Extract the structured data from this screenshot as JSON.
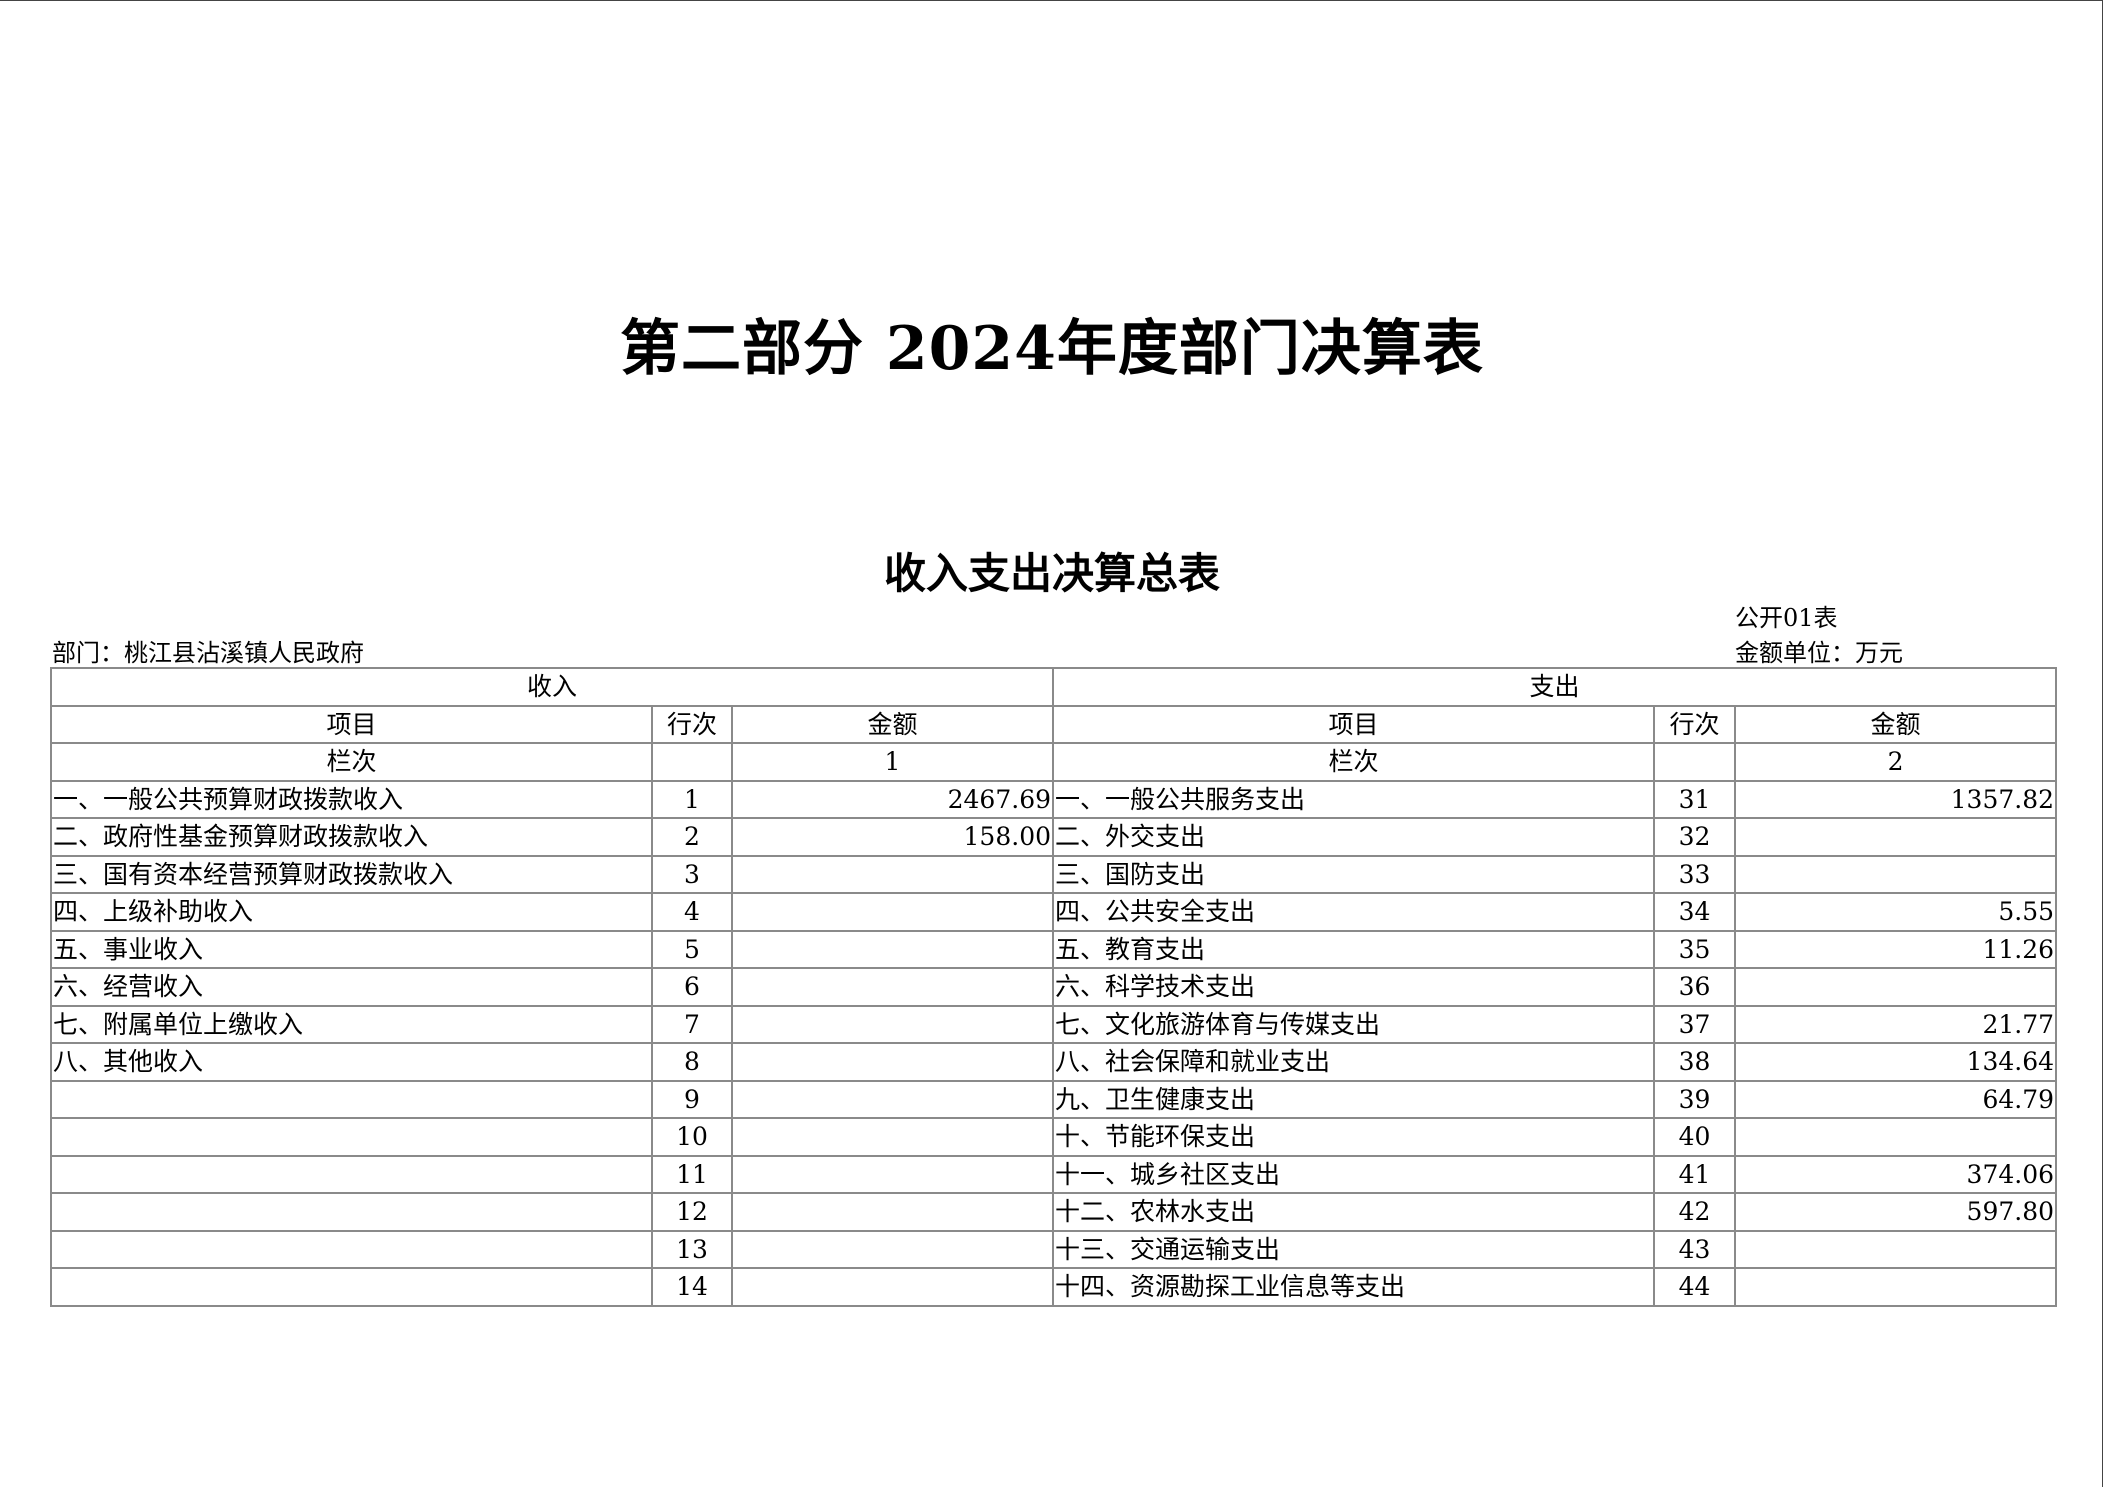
{
  "title": "第二部分 2024年度部门决算表",
  "subtitle": "收入支出决算总表",
  "form_no": "公开01表",
  "department": "部门：桃江县沾溪镇人民政府",
  "unit": "金额单位：万元",
  "table": {
    "income_header": "收入",
    "expense_header": "支出",
    "col_item": "项目",
    "col_line": "行次",
    "col_amount": "金额",
    "col_index_label": "栏次",
    "income_col_index": "1",
    "expense_col_index": "2",
    "rows": [
      {
        "in_item": "一、一般公共预算财政拨款收入",
        "in_line": "1",
        "in_amount": "2467.69",
        "ex_item": "一、一般公共服务支出",
        "ex_line": "31",
        "ex_amount": "1357.82"
      },
      {
        "in_item": "二、政府性基金预算财政拨款收入",
        "in_line": "2",
        "in_amount": "158.00",
        "ex_item": "二、外交支出",
        "ex_line": "32",
        "ex_amount": ""
      },
      {
        "in_item": "三、国有资本经营预算财政拨款收入",
        "in_line": "3",
        "in_amount": "",
        "ex_item": "三、国防支出",
        "ex_line": "33",
        "ex_amount": ""
      },
      {
        "in_item": "四、上级补助收入",
        "in_line": "4",
        "in_amount": "",
        "ex_item": "四、公共安全支出",
        "ex_line": "34",
        "ex_amount": "5.55"
      },
      {
        "in_item": "五、事业收入",
        "in_line": "5",
        "in_amount": "",
        "ex_item": "五、教育支出",
        "ex_line": "35",
        "ex_amount": "11.26"
      },
      {
        "in_item": "六、经营收入",
        "in_line": "6",
        "in_amount": "",
        "ex_item": "六、科学技术支出",
        "ex_line": "36",
        "ex_amount": ""
      },
      {
        "in_item": "七、附属单位上缴收入",
        "in_line": "7",
        "in_amount": "",
        "ex_item": "七、文化旅游体育与传媒支出",
        "ex_line": "37",
        "ex_amount": "21.77"
      },
      {
        "in_item": "八、其他收入",
        "in_line": "8",
        "in_amount": "",
        "ex_item": "八、社会保障和就业支出",
        "ex_line": "38",
        "ex_amount": "134.64"
      },
      {
        "in_item": "",
        "in_line": "9",
        "in_amount": "",
        "ex_item": "九、卫生健康支出",
        "ex_line": "39",
        "ex_amount": "64.79"
      },
      {
        "in_item": "",
        "in_line": "10",
        "in_amount": "",
        "ex_item": "十、节能环保支出",
        "ex_line": "40",
        "ex_amount": ""
      },
      {
        "in_item": "",
        "in_line": "11",
        "in_amount": "",
        "ex_item": "十一、城乡社区支出",
        "ex_line": "41",
        "ex_amount": "374.06"
      },
      {
        "in_item": "",
        "in_line": "12",
        "in_amount": "",
        "ex_item": "十二、农林水支出",
        "ex_line": "42",
        "ex_amount": "597.80"
      },
      {
        "in_item": "",
        "in_line": "13",
        "in_amount": "",
        "ex_item": "十三、交通运输支出",
        "ex_line": "43",
        "ex_amount": ""
      },
      {
        "in_item": "",
        "in_line": "14",
        "in_amount": "",
        "ex_item": "十四、资源勘探工业信息等支出",
        "ex_line": "44",
        "ex_amount": ""
      }
    ]
  }
}
